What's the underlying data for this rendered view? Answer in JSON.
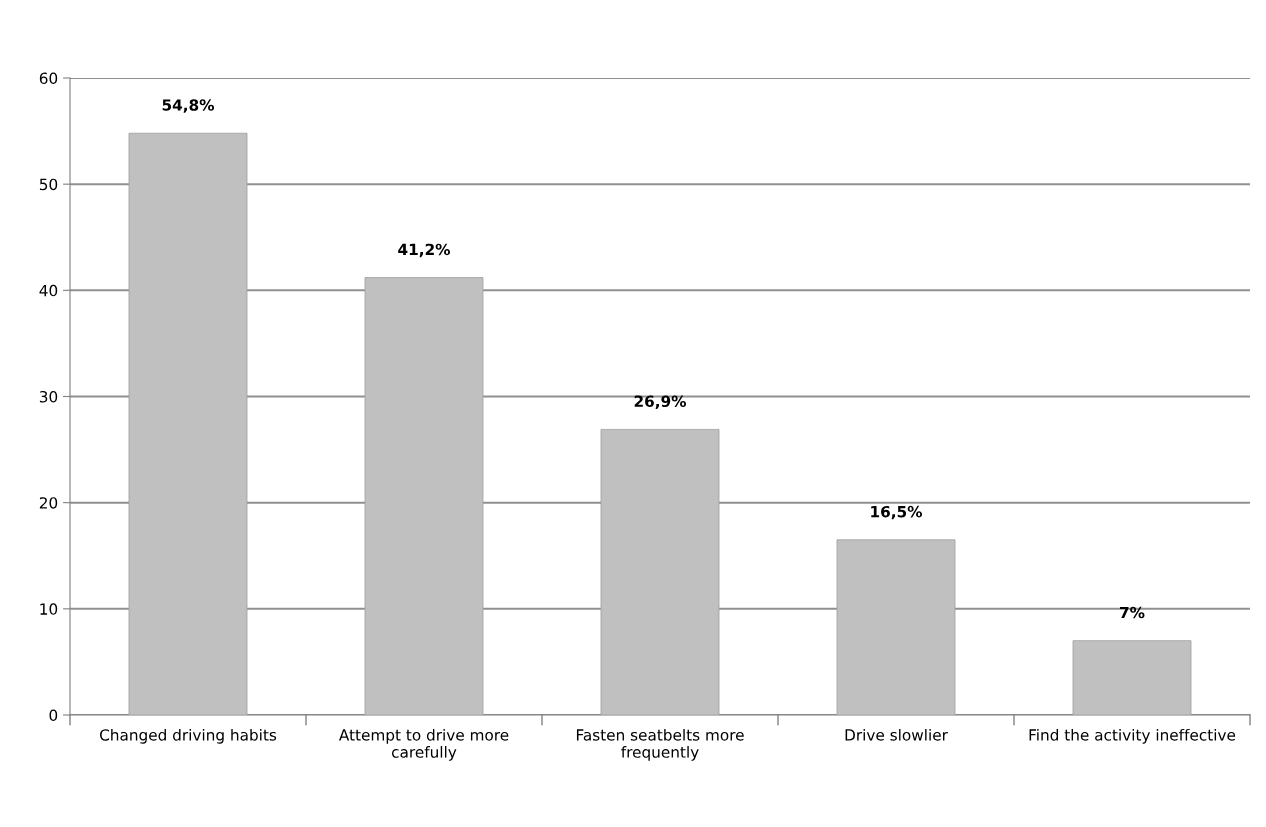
{
  "chart_data": {
    "type": "bar",
    "categories": [
      "Changed driving habits",
      "Attempt to drive more\ncarefully",
      "Fasten seatbelts more\nfrequently",
      "Drive slowlier",
      "Find the activity ineffective"
    ],
    "values": [
      54.8,
      41.2,
      26.9,
      16.5,
      7
    ],
    "value_labels": [
      "54,8%",
      "41,2%",
      "26,9%",
      "16,5%",
      "7%"
    ],
    "color": "#c0c0c0",
    "ylim": [
      0,
      60
    ],
    "yticks": [
      0,
      10,
      20,
      30,
      40,
      50,
      60
    ],
    "grid": "y",
    "legend": false
  }
}
